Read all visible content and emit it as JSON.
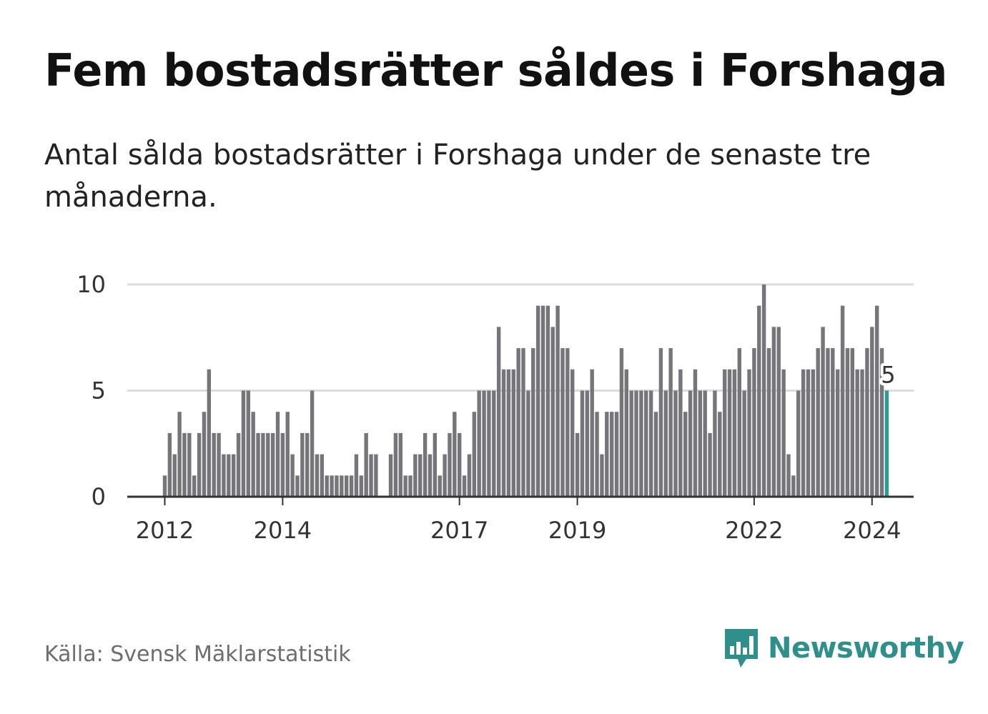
{
  "title": "Fem bostadsrätter såldes i Forshaga",
  "subtitle": "Antal sålda bostadsrätter i Forshaga under de senaste tre månaderna.",
  "source": "Källa: Svensk Mäklarstatistik",
  "brand": {
    "name": "Newsworthy",
    "color": "#2f8f8a"
  },
  "colors": {
    "bar": "#76767a",
    "highlight": "#2b9c93",
    "grid": "#dcdcdc",
    "axis": "#333333"
  },
  "chart_data": {
    "type": "bar",
    "title": "Fem bostadsrätter såldes i Forshaga",
    "xlabel": "",
    "ylabel": "",
    "ylim": [
      0,
      10
    ],
    "yticks": [
      0,
      5,
      10
    ],
    "x_tick_labels": [
      "2012",
      "2014",
      "2017",
      "2019",
      "2022",
      "2024"
    ],
    "x_tick_indices": [
      0,
      24,
      60,
      84,
      120,
      144
    ],
    "start": "2012-01",
    "highlight_label": "5",
    "values": [
      1,
      3,
      2,
      4,
      3,
      3,
      1,
      3,
      4,
      6,
      3,
      3,
      2,
      2,
      2,
      3,
      5,
      5,
      4,
      3,
      3,
      3,
      3,
      4,
      3,
      4,
      2,
      1,
      3,
      3,
      5,
      2,
      2,
      1,
      1,
      1,
      1,
      1,
      1,
      2,
      1,
      3,
      2,
      2,
      0,
      0,
      2,
      3,
      3,
      1,
      1,
      2,
      2,
      3,
      2,
      3,
      1,
      2,
      3,
      4,
      3,
      1,
      2,
      4,
      5,
      5,
      5,
      5,
      8,
      6,
      6,
      6,
      7,
      7,
      5,
      7,
      9,
      9,
      9,
      8,
      9,
      7,
      7,
      6,
      3,
      5,
      5,
      6,
      4,
      2,
      4,
      4,
      4,
      7,
      6,
      5,
      5,
      5,
      5,
      5,
      4,
      7,
      5,
      7,
      5,
      6,
      4,
      5,
      6,
      5,
      5,
      3,
      5,
      4,
      6,
      6,
      6,
      7,
      5,
      6,
      7,
      9,
      10,
      7,
      8,
      8,
      6,
      2,
      1,
      5,
      6,
      6,
      6,
      7,
      8,
      7,
      7,
      6,
      9,
      7,
      7,
      6,
      6,
      7,
      8,
      9,
      7,
      5
    ]
  }
}
